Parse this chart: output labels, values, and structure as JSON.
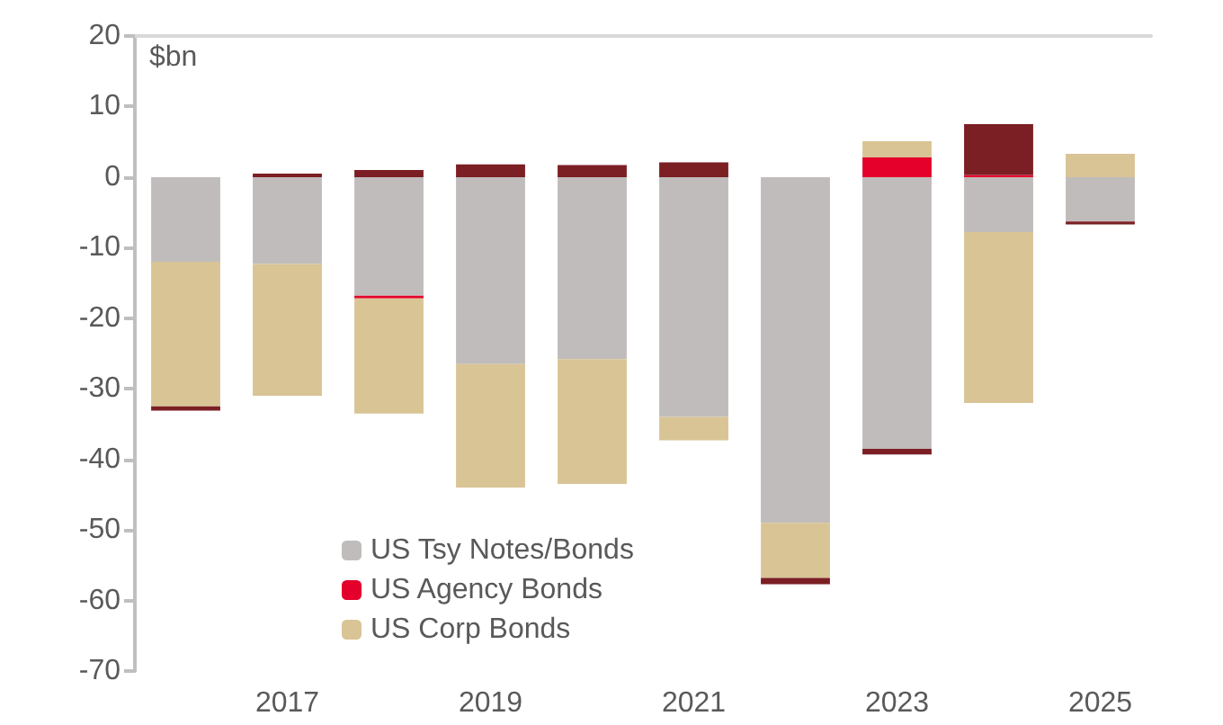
{
  "chart_data": {
    "type": "bar",
    "stacked": true,
    "ylabel": "$bn",
    "categories": [
      null,
      "2017",
      null,
      "2019",
      null,
      "2021",
      null,
      "2023",
      null,
      "2025"
    ],
    "series": [
      {
        "name": "US Tsy Notes/Bonds",
        "color": "#c0bcbb",
        "values": [
          -12,
          -12.3,
          -16.8,
          -26.5,
          -25.8,
          -34,
          -49,
          -38.5,
          -7.8,
          -6.3
        ]
      },
      {
        "name": "US Agency Bonds",
        "color": "#e4002b",
        "values": [
          0,
          0,
          -0.4,
          0,
          0,
          0,
          0,
          2.8,
          0.3,
          0
        ]
      },
      {
        "name": "US Corp Bonds",
        "color": "#d8c495",
        "values": [
          -20.5,
          -18.7,
          -16.3,
          -17.5,
          -17.7,
          -3.3,
          -7.8,
          2.3,
          -24.2,
          3.3
        ]
      },
      {
        "color": "#7b1f24",
        "values": [
          -0.6,
          0.5,
          1,
          1.8,
          1.7,
          2.1,
          -0.9,
          -0.8,
          7.2,
          -0.4
        ]
      }
    ],
    "ylim": [
      -70,
      20
    ],
    "yticks": [
      -70,
      -60,
      -50,
      -40,
      -30,
      -20,
      -10,
      0,
      10,
      20
    ],
    "grid": false,
    "legend": "bottom left"
  }
}
